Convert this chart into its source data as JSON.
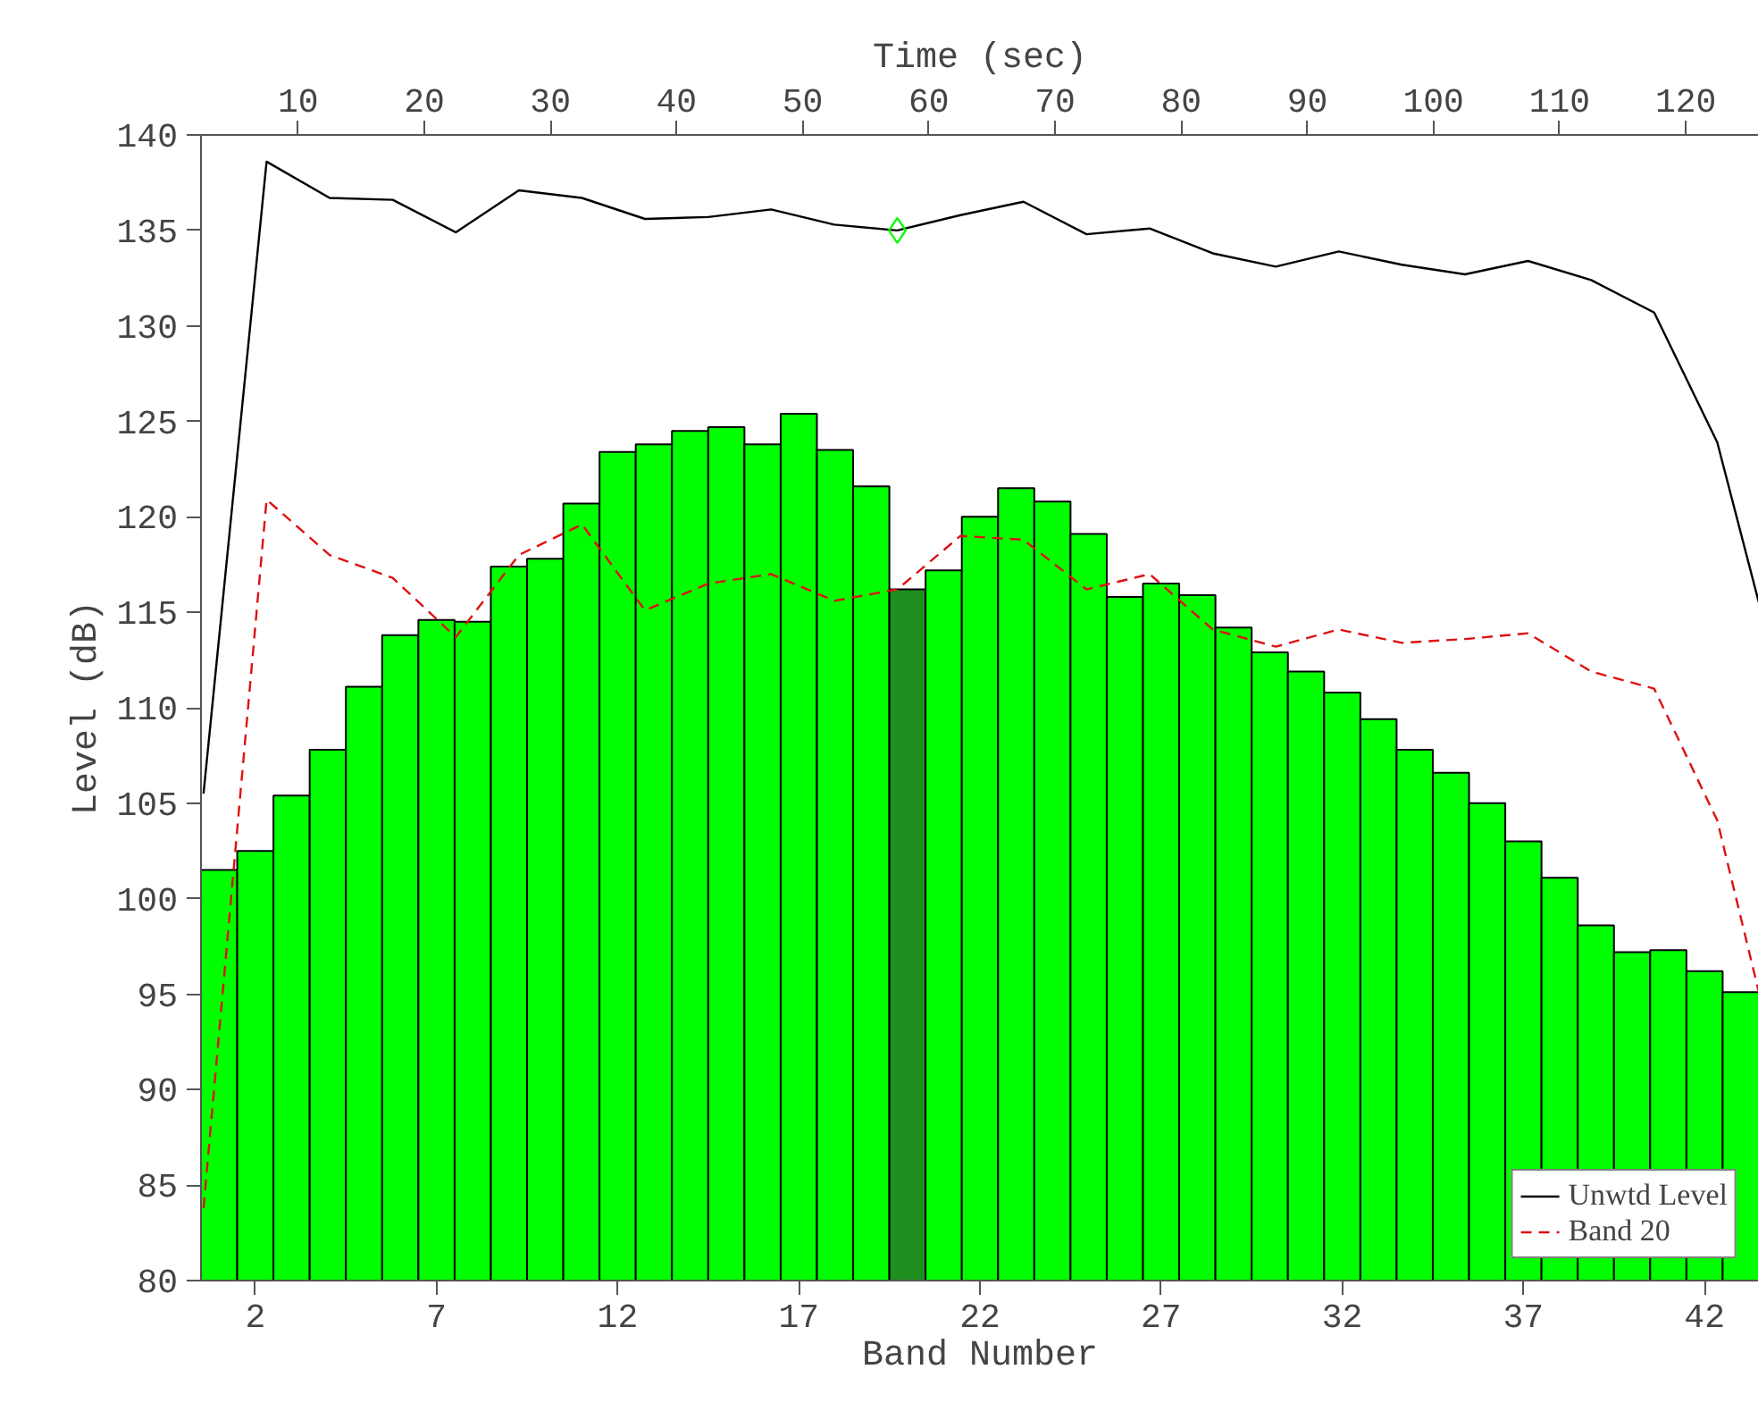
{
  "chart_data": {
    "type": "bar",
    "xlabel": "Band Number",
    "ylabel": "Level (dB)",
    "x2label": "Time (sec)",
    "xlim": [
      0.5,
      43.5
    ],
    "xticks": [
      2,
      7,
      12,
      17,
      22,
      27,
      32,
      37,
      42
    ],
    "x2lim": [
      2.3,
      125.8
    ],
    "x2ticks": [
      10,
      20,
      30,
      40,
      50,
      60,
      70,
      80,
      90,
      100,
      110,
      120
    ],
    "ylim": [
      80,
      140
    ],
    "yticks": [
      80,
      85,
      90,
      95,
      100,
      105,
      110,
      115,
      120,
      125,
      130,
      135,
      140
    ],
    "grid": false,
    "legend": "bottom right",
    "series": [
      {
        "x": [
          1,
          2,
          3,
          4,
          5,
          6,
          7,
          8,
          9,
          10,
          11,
          12,
          13,
          14,
          15,
          16,
          17,
          18,
          19,
          20,
          21,
          22,
          23,
          24,
          25,
          26,
          27,
          28,
          29,
          30,
          31,
          32,
          33,
          34,
          35,
          36,
          37,
          38,
          39,
          40,
          41,
          42,
          43
        ],
        "values": [
          101.5,
          102.5,
          105.4,
          107.8,
          111.1,
          113.8,
          114.6,
          114.5,
          117.4,
          117.8,
          120.7,
          123.4,
          123.8,
          124.5,
          124.7,
          123.8,
          125.4,
          123.5,
          121.6,
          116.2,
          117.2,
          120.0,
          121.5,
          120.8,
          119.1,
          115.8,
          116.5,
          115.9,
          114.2,
          112.9,
          111.9,
          110.8,
          109.4,
          107.8,
          106.6,
          105.0,
          103.0,
          101.1,
          98.6,
          97.2,
          97.3,
          96.2,
          95.1
        ],
        "colors": [
          "#00ff00",
          "#00ff00",
          "#00ff00",
          "#00ff00",
          "#00ff00",
          "#00ff00",
          "#00ff00",
          "#00ff00",
          "#00ff00",
          "#00ff00",
          "#00ff00",
          "#00ff00",
          "#00ff00",
          "#00ff00",
          "#00ff00",
          "#00ff00",
          "#00ff00",
          "#00ff00",
          "#00ff00",
          "#1f8f1f",
          "#00ff00",
          "#00ff00",
          "#00ff00",
          "#00ff00",
          "#00ff00",
          "#00ff00",
          "#00ff00",
          "#00ff00",
          "#00ff00",
          "#00ff00",
          "#00ff00",
          "#00ff00",
          "#00ff00",
          "#00ff00",
          "#00ff00",
          "#00ff00",
          "#00ff00",
          "#00ff00",
          "#00ff00",
          "#00ff00",
          "#00ff00",
          "#00ff00",
          "#00ff00"
        ]
      },
      {
        "type": "line",
        "name": "Unwtd Level",
        "color": "#000000",
        "axis": "x2",
        "line_style": "solid",
        "x": [
          2.5,
          7.5,
          12.5,
          17.5,
          22.5,
          27.5,
          32.5,
          37.5,
          42.5,
          47.5,
          52.5,
          57.5,
          62.5,
          67.5,
          72.5,
          77.5,
          82.5,
          87.5,
          92.5,
          97.5,
          102.5,
          107.5,
          112.5,
          117.5,
          122.5,
          125.8
        ],
        "values": [
          105.5,
          138.6,
          136.7,
          136.6,
          134.9,
          137.1,
          136.7,
          135.6,
          135.7,
          136.1,
          135.3,
          135.0,
          135.8,
          136.5,
          134.8,
          135.1,
          133.8,
          133.1,
          133.9,
          133.2,
          132.7,
          133.4,
          132.4,
          130.7,
          123.9,
          115.5
        ]
      },
      {
        "type": "line",
        "name": "Band 20",
        "color": "#dd1111",
        "axis": "x2",
        "line_style": "dashed",
        "x": [
          2.5,
          7.5,
          12.5,
          17.5,
          22.5,
          27.5,
          32.5,
          37.5,
          42.5,
          47.5,
          52.5,
          57.5,
          62.5,
          67.5,
          72.5,
          77.5,
          82.5,
          87.5,
          92.5,
          97.5,
          102.5,
          107.5,
          112.5,
          117.5,
          122.5,
          125.8
        ],
        "values": [
          83.8,
          120.9,
          118.0,
          116.8,
          113.7,
          118.0,
          119.6,
          115.1,
          116.5,
          117.0,
          115.6,
          116.2,
          119.0,
          118.8,
          116.2,
          117.0,
          114.1,
          113.2,
          114.1,
          113.4,
          113.6,
          113.9,
          111.9,
          111.0,
          104.1,
          95.1
        ]
      },
      {
        "type": "scatter",
        "color": "#00ff00",
        "axis": "x2",
        "marker": "diamond",
        "x": [
          57.5
        ],
        "values": [
          135.0
        ]
      }
    ]
  }
}
